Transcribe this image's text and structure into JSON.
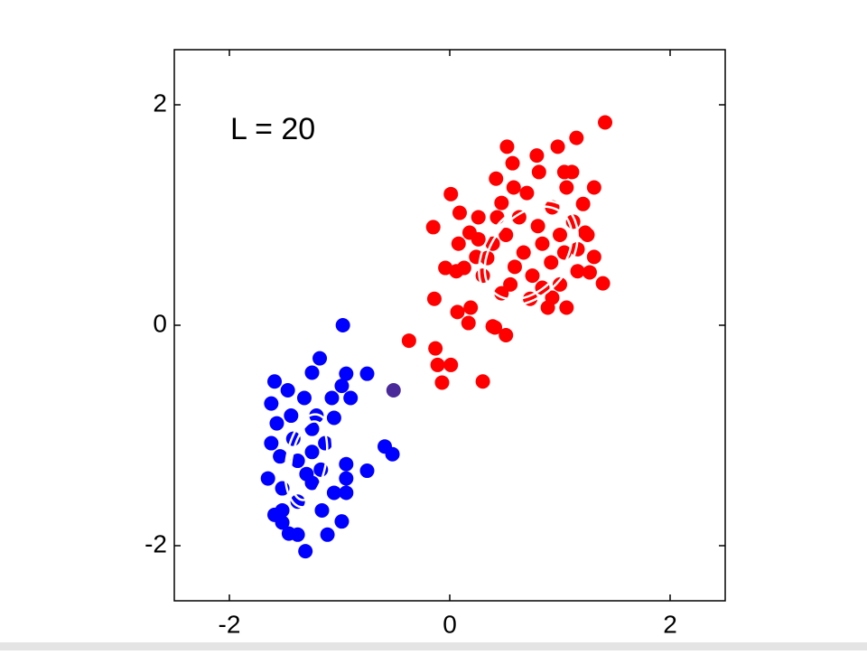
{
  "chart_data": {
    "type": "scatter",
    "annotation": "L = 20",
    "xlim": [
      -2.5,
      2.5
    ],
    "ylim": [
      -2.5,
      2.5
    ],
    "xticks": [
      -2,
      0,
      2
    ],
    "yticks": [
      -2,
      0,
      2
    ],
    "series": [
      {
        "color": "#ff0000",
        "x": [
          1.41,
          1.15,
          0.98,
          0.52,
          0.79,
          0.57,
          0.42,
          0.81,
          1.04,
          1.11,
          0.01,
          0.58,
          1.31,
          1.06,
          0.09,
          -0.15,
          0.26,
          0.43,
          1.21,
          1.23,
          0.08,
          0.18,
          0.24,
          -0.04,
          0.13,
          0.3,
          -0.14,
          0.07,
          0.17,
          0.41,
          0.51,
          0.39,
          1.06,
          0.89,
          1.27,
          1.39,
          1.31,
          1.16,
          0.84,
          0.93,
          0.73,
          0.47,
          0.19,
          -0.37,
          -0.13,
          -0.11,
          0.01,
          -0.07,
          0.3,
          0.7,
          0.93,
          0.63,
          0.8,
          1.0,
          0.51,
          0.39,
          0.67,
          0.92,
          0.59,
          0.34,
          0.75,
          1.0,
          0.55,
          0.84,
          1.12,
          0.47,
          0.26,
          1.04,
          1.25,
          1.16,
          0.06
        ],
        "values": [
          1.84,
          1.7,
          1.62,
          1.62,
          1.54,
          1.47,
          1.33,
          1.39,
          1.39,
          1.39,
          1.19,
          1.25,
          1.25,
          1.25,
          1.02,
          0.89,
          0.98,
          0.98,
          1.1,
          0.84,
          0.74,
          0.84,
          0.62,
          0.52,
          0.52,
          0.45,
          0.24,
          0.12,
          0.02,
          -0.02,
          -0.09,
          -0.01,
          0.16,
          0.16,
          0.48,
          0.38,
          0.62,
          0.69,
          0.34,
          0.25,
          0.24,
          0.29,
          0.16,
          -0.14,
          -0.21,
          -0.36,
          -0.36,
          -0.52,
          -0.51,
          1.2,
          1.07,
          0.98,
          0.9,
          0.82,
          0.82,
          0.74,
          0.66,
          0.57,
          0.53,
          0.61,
          0.45,
          0.37,
          0.37,
          0.74,
          0.94,
          1.11,
          0.78,
          0.66,
          0.82,
          0.49,
          0.49
        ]
      },
      {
        "color": "#0000ff",
        "x": [
          -0.97,
          -1.18,
          -1.25,
          -0.94,
          -0.75,
          -1.59,
          -1.47,
          -0.98,
          -1.32,
          -1.07,
          -0.9,
          -1.62,
          -1.44,
          -1.57,
          -1.25,
          -1.05,
          -1.62,
          -1.54,
          -0.59,
          -0.52,
          -0.75,
          -0.94,
          -1.65,
          -1.52,
          -1.25,
          -0.94,
          -1.05,
          -0.94,
          -1.38,
          -1.52,
          -1.16,
          -0.98,
          -1.52,
          -1.59,
          -1.46,
          -1.38,
          -1.11,
          -1.31,
          -1.25,
          -1.38,
          -1.17,
          -1.3,
          -1.13,
          -1.42,
          -1.21
        ],
        "values": [
          0,
          -0.3,
          -0.43,
          -0.44,
          -0.44,
          -0.51,
          -0.59,
          -0.55,
          -0.66,
          -0.66,
          -0.66,
          -0.71,
          -0.82,
          -0.89,
          -0.94,
          -0.84,
          -1.07,
          -1.19,
          -1.1,
          -1.17,
          -1.32,
          -1.26,
          -1.39,
          -1.48,
          -1.43,
          -1.39,
          -1.52,
          -1.52,
          -1.6,
          -1.68,
          -1.68,
          -1.78,
          -1.79,
          -1.72,
          -1.89,
          -1.9,
          -1.9,
          -2.05,
          -1.15,
          -1.23,
          -1.31,
          -1.35,
          -1.07,
          -1.03,
          -0.82
        ]
      },
      {
        "color": "#4a2a9a",
        "x": [
          -0.51
        ],
        "values": [
          -0.59
        ]
      }
    ]
  }
}
